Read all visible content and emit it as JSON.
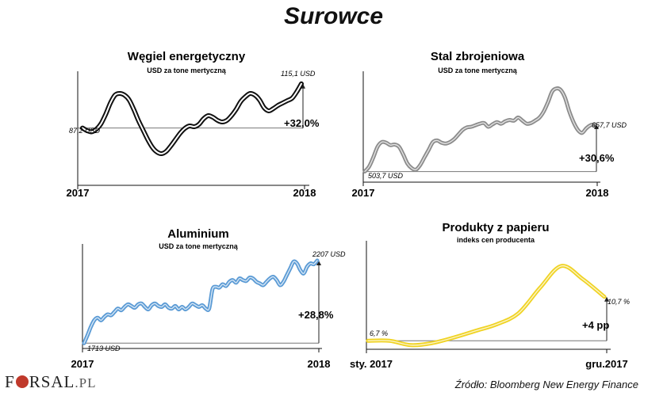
{
  "title": "Surowce",
  "source": "Źródło: Bloomberg New Energy Finance",
  "logo": {
    "text_a": "F",
    "text_b": "RSAL",
    "suffix": ".PL"
  },
  "chart_data": [
    {
      "type": "line",
      "title": "Węgiel energetyczny",
      "subtitle": "USD za tone mertyczną",
      "x_start_label": "2017",
      "x_end_label": "2018",
      "start_label": "87,2 USD",
      "end_label": "115,1 USD",
      "change_label": "+32,0%",
      "start_value": 87.2,
      "end_value": 115.1,
      "ylim": [
        65,
        125
      ],
      "color": "#111111",
      "style": "outline",
      "values": [
        87.2,
        85.5,
        84.8,
        86.5,
        90,
        96,
        103,
        108,
        109,
        108,
        105,
        99,
        92,
        86,
        80,
        75,
        72,
        71,
        72.5,
        76,
        80,
        84,
        87,
        88.5,
        88,
        89.5,
        93,
        95,
        94,
        92,
        91,
        92,
        95,
        99,
        104,
        107,
        109,
        108,
        105,
        100,
        98,
        99.5,
        101.5,
        103,
        104.5,
        106,
        110,
        115.1
      ]
    },
    {
      "type": "line",
      "title": "Stal zbrojeniowa",
      "subtitle": "USD za tone mertyczną",
      "x_start_label": "2017",
      "x_end_label": "2018",
      "start_label": "503,7 USD",
      "end_label": "657,7 USD",
      "change_label": "+30,6%",
      "start_value": 503.7,
      "end_value": 657.7,
      "ylim": [
        495,
        800
      ],
      "color": "#8c8c8c",
      "style": "outline",
      "values": [
        504,
        520,
        550,
        585,
        600,
        598,
        590,
        592,
        585,
        560,
        530,
        515,
        510,
        525,
        550,
        575,
        600,
        605,
        598,
        595,
        600,
        610,
        625,
        640,
        648,
        650,
        655,
        660,
        662,
        650,
        658,
        665,
        660,
        668,
        672,
        670,
        680,
        670,
        660,
        662,
        670,
        680,
        700,
        730,
        765,
        775,
        770,
        745,
        700,
        665,
        640,
        630,
        645,
        655,
        657.7
      ]
    },
    {
      "type": "line",
      "title": "Aluminium",
      "subtitle": "USD za tone mertyczną",
      "x_start_label": "2017",
      "x_end_label": "2018",
      "start_label": "1713 USD",
      "end_label": "2207 USD",
      "change_label": "+28,8%",
      "start_value": 1713,
      "end_value": 2207,
      "ylim": [
        1705,
        2240
      ],
      "color": "#5b9bd5",
      "style": "outline",
      "values": [
        1713,
        1760,
        1810,
        1850,
        1865,
        1850,
        1870,
        1885,
        1880,
        1900,
        1920,
        1910,
        1930,
        1945,
        1935,
        1925,
        1945,
        1950,
        1930,
        1915,
        1940,
        1950,
        1935,
        1930,
        1945,
        1925,
        1920,
        1935,
        1915,
        1930,
        1915,
        1930,
        1950,
        1940,
        1930,
        1940,
        1920,
        1920,
        2035,
        2050,
        2045,
        2065,
        2055,
        2080,
        2090,
        2075,
        2100,
        2090,
        2085,
        2105,
        2100,
        2080,
        2070,
        2060,
        2080,
        2100,
        2110,
        2090,
        2060,
        2080,
        2120,
        2160,
        2200,
        2190,
        2150,
        2130,
        2170,
        2190,
        2185,
        2207
      ]
    },
    {
      "type": "line",
      "title": "Produkty z papieru",
      "subtitle": "indeks cen producenta",
      "x_start_label": "sty. 2017",
      "x_end_label": "gru.2017",
      "start_label": "6,7 %",
      "end_label": "10,7 %",
      "change_label": "+4 pp",
      "start_value": 6.7,
      "end_value": 10.7,
      "ylim": [
        6.0,
        15.0
      ],
      "color": "#f0d324",
      "style": "outline",
      "x": [
        0,
        1,
        2,
        3,
        4,
        5,
        6,
        7,
        8,
        9,
        10,
        11
      ],
      "values": [
        6.7,
        6.7,
        6.3,
        6.5,
        7.0,
        7.6,
        8.2,
        9.2,
        11.5,
        13.5,
        12.3,
        10.7
      ]
    }
  ]
}
